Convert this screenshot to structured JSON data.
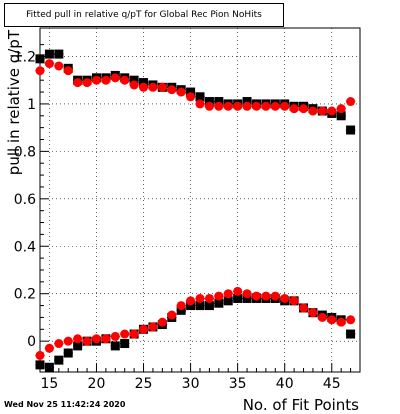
{
  "chart_data": {
    "type": "scatter",
    "title": "Fitted pull in relative q/pT for Global Rec Pion NoHits",
    "xlabel": "No. of Fit Points",
    "ylabel": "pull in relative q/pT",
    "xlim": [
      14,
      48
    ],
    "ylim": [
      -0.13,
      1.32
    ],
    "x_ticks": [
      15,
      20,
      25,
      30,
      35,
      40,
      45
    ],
    "y_ticks": [
      0,
      0.2,
      0.4,
      0.6,
      0.8,
      1,
      1.2
    ],
    "x_tick_labels": [
      "15",
      "20",
      "25",
      "30",
      "35",
      "40",
      "45"
    ],
    "y_tick_labels": [
      "0",
      "0.2",
      "0.4",
      "0.6",
      "0.8",
      "1",
      "1.2"
    ],
    "grid": true,
    "x": [
      14,
      15,
      16,
      17,
      18,
      19,
      20,
      21,
      22,
      23,
      24,
      25,
      26,
      27,
      28,
      29,
      30,
      31,
      32,
      33,
      34,
      35,
      36,
      37,
      38,
      39,
      40,
      41,
      42,
      43,
      44,
      45,
      46,
      47
    ],
    "series": [
      {
        "marker": "square",
        "color": "#000000",
        "sigma": [
          1.19,
          1.21,
          1.21,
          1.15,
          1.1,
          1.1,
          1.11,
          1.11,
          1.12,
          1.11,
          1.1,
          1.09,
          1.08,
          1.07,
          1.07,
          1.06,
          1.05,
          1.03,
          1.01,
          1.01,
          1.0,
          1.0,
          1.01,
          1.0,
          1.0,
          1.0,
          1.0,
          0.99,
          0.99,
          0.98,
          0.97,
          0.96,
          0.95,
          0.89
        ],
        "mean": [
          -0.1,
          -0.11,
          -0.08,
          -0.05,
          -0.02,
          0.0,
          0.0,
          0.01,
          -0.02,
          -0.01,
          0.03,
          0.05,
          0.06,
          0.07,
          0.1,
          0.13,
          0.15,
          0.15,
          0.15,
          0.16,
          0.17,
          0.18,
          0.18,
          0.18,
          0.18,
          0.18,
          0.17,
          0.17,
          0.14,
          0.12,
          0.11,
          0.1,
          0.09,
          0.03
        ]
      },
      {
        "marker": "circle",
        "color": "#ff0000",
        "sigma": [
          1.14,
          1.17,
          1.16,
          1.14,
          1.09,
          1.09,
          1.1,
          1.1,
          1.11,
          1.1,
          1.08,
          1.07,
          1.07,
          1.07,
          1.06,
          1.05,
          1.03,
          1.0,
          0.99,
          0.99,
          0.99,
          0.99,
          0.99,
          0.99,
          0.99,
          0.99,
          0.99,
          0.98,
          0.98,
          0.97,
          0.97,
          0.97,
          0.98,
          1.01
        ],
        "mean": [
          -0.06,
          -0.03,
          -0.01,
          0.0,
          0.01,
          0.0,
          0.01,
          0.01,
          0.02,
          0.03,
          0.03,
          0.05,
          0.06,
          0.08,
          0.11,
          0.15,
          0.17,
          0.18,
          0.18,
          0.19,
          0.2,
          0.21,
          0.2,
          0.19,
          0.19,
          0.19,
          0.18,
          0.17,
          0.14,
          0.12,
          0.1,
          0.09,
          0.08,
          0.09
        ]
      }
    ]
  },
  "timestamp": "Wed Nov 25 11:42:24 2020"
}
